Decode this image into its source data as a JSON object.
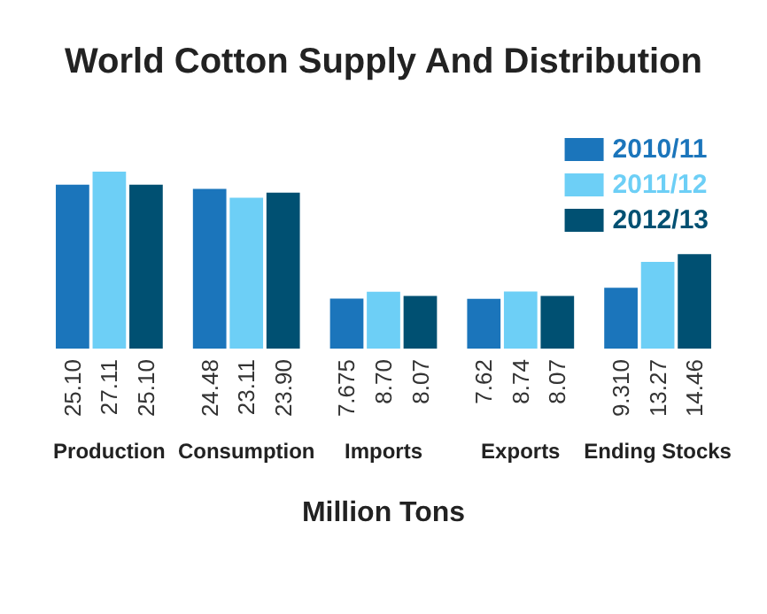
{
  "chart_data": {
    "type": "bar",
    "title": "World Cotton Supply And Distribution",
    "xlabel": "Million Tons",
    "categories": [
      "Production",
      "Consumption",
      "Imports",
      "Exports",
      "Ending Stocks"
    ],
    "legend": "top right",
    "series": [
      {
        "name": "2010/11",
        "color": "#1b75bb",
        "values": [
          25.1,
          24.48,
          7.675,
          7.62,
          9.31
        ],
        "value_labels": [
          "25.10",
          "24.48",
          "7.675",
          "7.62",
          "9.310"
        ]
      },
      {
        "name": "2011/12",
        "color": "#6dcff6",
        "values": [
          27.11,
          23.11,
          8.7,
          8.74,
          13.27
        ],
        "value_labels": [
          "27.11",
          "23.11",
          "8.70",
          "8.74",
          "13.27"
        ]
      },
      {
        "name": "2012/13",
        "color": "#005072",
        "values": [
          25.1,
          23.9,
          8.07,
          8.07,
          14.46
        ],
        "value_labels": [
          "25.10",
          "23.90",
          "8.07",
          "8.07",
          "14.46"
        ]
      }
    ]
  }
}
